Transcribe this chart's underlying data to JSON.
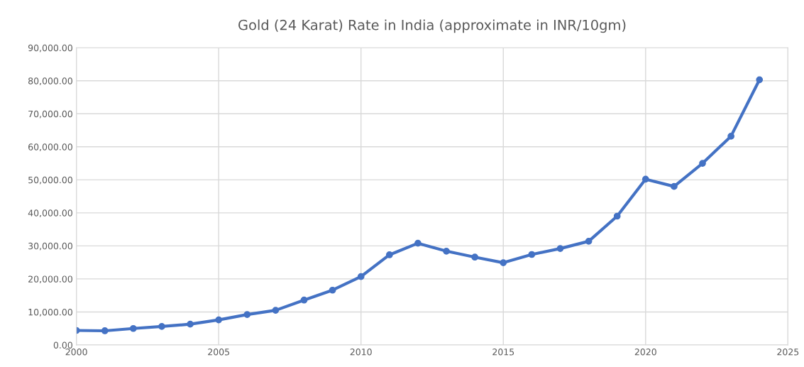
{
  "chart_data": {
    "type": "line",
    "title": "Gold (24 Karat) Rate in India (approximate in INR/10gm)",
    "x": [
      2000,
      2001,
      2002,
      2003,
      2004,
      2005,
      2006,
      2007,
      2008,
      2009,
      2010,
      2011,
      2012,
      2013,
      2014,
      2015,
      2016,
      2017,
      2018,
      2019,
      2020,
      2021,
      2022,
      2023,
      2024
    ],
    "series": [
      {
        "color": "#4472c4",
        "values": [
          4400,
          4300,
          4990,
          5600,
          6300,
          7600,
          9200,
          10500,
          13600,
          16600,
          20700,
          27300,
          30800,
          28400,
          26600,
          24900,
          27400,
          29200,
          31400,
          39000,
          50200,
          48000,
          55000,
          63200,
          80300
        ]
      }
    ],
    "xlim": [
      2000,
      2025
    ],
    "xticks": [
      2000,
      2005,
      2010,
      2015,
      2020,
      2025
    ],
    "ylim": [
      0,
      90000
    ],
    "yticks": [
      {
        "value": 0,
        "label": "0.00"
      },
      {
        "value": 10000,
        "label": "10,000.00"
      },
      {
        "value": 20000,
        "label": "20,000.00"
      },
      {
        "value": 30000,
        "label": "30,000.00"
      },
      {
        "value": 40000,
        "label": "40,000.00"
      },
      {
        "value": 50000,
        "label": "50,000.00"
      },
      {
        "value": 60000,
        "label": "60,000.00"
      },
      {
        "value": 70000,
        "label": "70,000.00"
      },
      {
        "value": 80000,
        "label": "80,000.00"
      },
      {
        "value": 90000,
        "label": "90,000.00"
      }
    ],
    "grid": true,
    "marker": "circle",
    "line_style": "solid"
  }
}
